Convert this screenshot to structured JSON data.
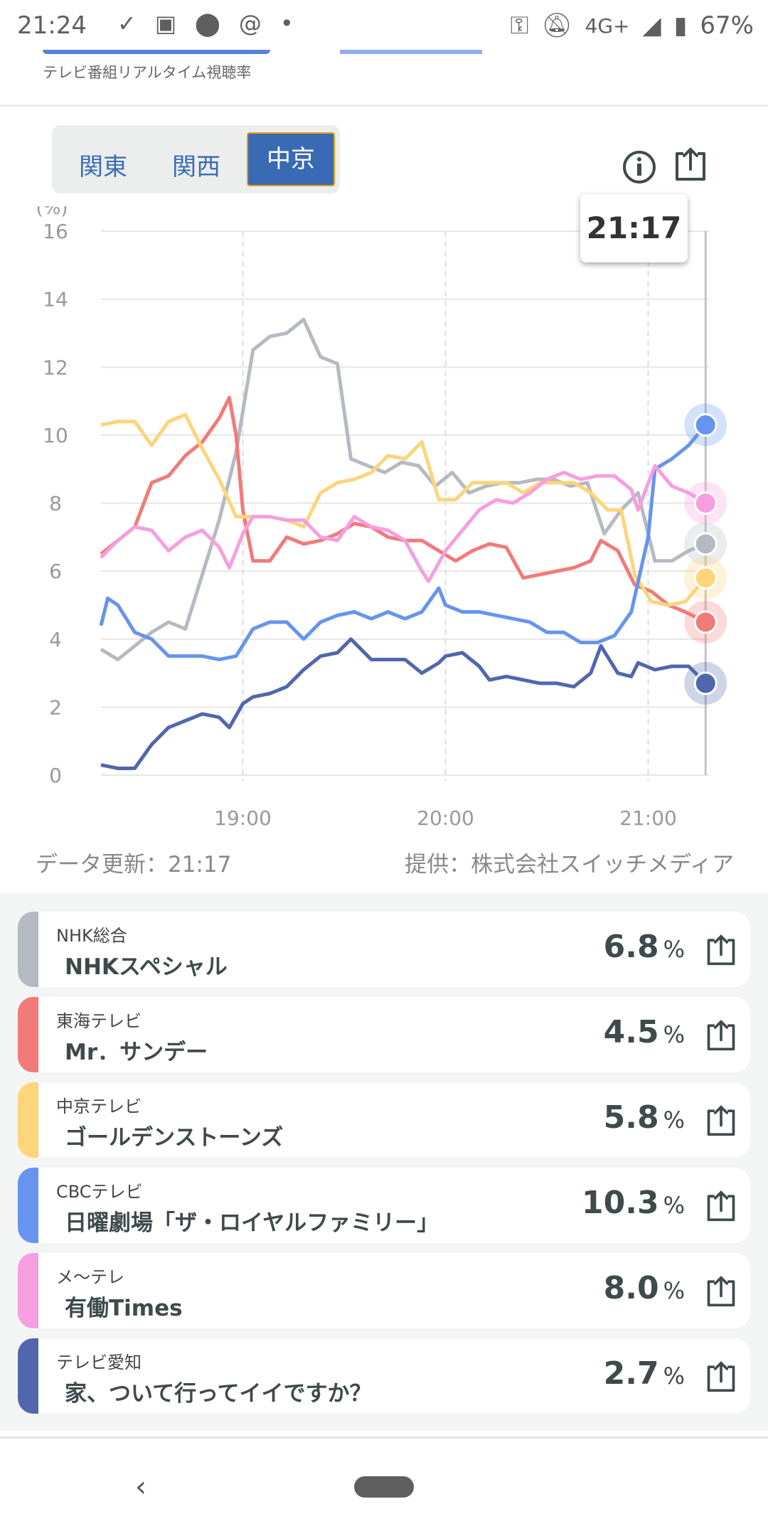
{
  "status": {
    "time": "21:24",
    "network": "4G+",
    "battery": "67%"
  },
  "header": {
    "subtitle": "テレビ番組リアルタイム視聴率"
  },
  "tabs": [
    {
      "label": "関東"
    },
    {
      "label": "関西"
    },
    {
      "label": "中京",
      "active": true
    }
  ],
  "tooltip": {
    "time": "21:17"
  },
  "footer": {
    "updated": "データ更新：21:17",
    "provider": "提供：株式会社スイッチメディア"
  },
  "chart_data": {
    "type": "line",
    "ylabel": "(%)",
    "ylim": [
      0,
      16
    ],
    "yticks": [
      0,
      2,
      4,
      6,
      8,
      10,
      12,
      14,
      16
    ],
    "x_unit": "minutes since 18:00",
    "xlim": [
      18,
      198
    ],
    "xticks": [
      {
        "x": 60,
        "label": "19:00"
      },
      {
        "x": 120,
        "label": "20:00"
      },
      {
        "x": 180,
        "label": "21:00"
      }
    ],
    "cursor_x": 197,
    "series": [
      {
        "name": "NHK総合",
        "color": "#b5bac2",
        "points": [
          [
            18,
            3.7
          ],
          [
            23,
            3.4
          ],
          [
            28,
            3.8
          ],
          [
            33,
            4.2
          ],
          [
            38,
            4.5
          ],
          [
            43,
            4.3
          ],
          [
            48,
            5.9
          ],
          [
            53,
            7.5
          ],
          [
            58,
            9.5
          ],
          [
            63,
            12.5
          ],
          [
            68,
            12.9
          ],
          [
            73,
            13.0
          ],
          [
            78,
            13.4
          ],
          [
            83,
            12.3
          ],
          [
            88,
            12.1
          ],
          [
            92,
            9.3
          ],
          [
            97,
            9.1
          ],
          [
            102,
            8.9
          ],
          [
            107,
            9.2
          ],
          [
            112,
            9.1
          ],
          [
            117,
            8.5
          ],
          [
            122,
            8.9
          ],
          [
            127,
            8.3
          ],
          [
            132,
            8.5
          ],
          [
            137,
            8.6
          ],
          [
            142,
            8.6
          ],
          [
            147,
            8.7
          ],
          [
            152,
            8.7
          ],
          [
            157,
            8.5
          ],
          [
            162,
            8.6
          ],
          [
            167,
            7.1
          ],
          [
            172,
            7.8
          ],
          [
            177,
            8.3
          ],
          [
            182,
            6.3
          ],
          [
            187,
            6.3
          ],
          [
            192,
            6.6
          ],
          [
            197,
            6.8
          ]
        ]
      },
      {
        "name": "東海テレビ",
        "color": "#f07b78",
        "points": [
          [
            18,
            6.5
          ],
          [
            23,
            6.9
          ],
          [
            28,
            7.3
          ],
          [
            33,
            8.6
          ],
          [
            38,
            8.8
          ],
          [
            43,
            9.4
          ],
          [
            48,
            9.8
          ],
          [
            53,
            10.5
          ],
          [
            56,
            11.1
          ],
          [
            58,
            10.0
          ],
          [
            60,
            7.8
          ],
          [
            63,
            6.3
          ],
          [
            68,
            6.3
          ],
          [
            73,
            7.0
          ],
          [
            78,
            6.8
          ],
          [
            83,
            6.9
          ],
          [
            88,
            7.1
          ],
          [
            93,
            7.4
          ],
          [
            98,
            7.3
          ],
          [
            103,
            7.0
          ],
          [
            108,
            6.9
          ],
          [
            113,
            6.9
          ],
          [
            118,
            6.6
          ],
          [
            123,
            6.3
          ],
          [
            128,
            6.6
          ],
          [
            133,
            6.8
          ],
          [
            138,
            6.7
          ],
          [
            143,
            5.8
          ],
          [
            148,
            5.9
          ],
          [
            153,
            6.0
          ],
          [
            158,
            6.1
          ],
          [
            163,
            6.3
          ],
          [
            166,
            6.9
          ],
          [
            171,
            6.6
          ],
          [
            176,
            5.6
          ],
          [
            181,
            5.4
          ],
          [
            186,
            5.0
          ],
          [
            191,
            4.8
          ],
          [
            197,
            4.5
          ]
        ]
      },
      {
        "name": "中京テレビ",
        "color": "#fdd57a",
        "points": [
          [
            18,
            10.3
          ],
          [
            23,
            10.4
          ],
          [
            28,
            10.4
          ],
          [
            33,
            9.7
          ],
          [
            38,
            10.4
          ],
          [
            43,
            10.6
          ],
          [
            48,
            9.6
          ],
          [
            53,
            8.7
          ],
          [
            58,
            7.6
          ],
          [
            63,
            7.6
          ],
          [
            68,
            7.6
          ],
          [
            73,
            7.5
          ],
          [
            78,
            7.3
          ],
          [
            83,
            8.3
          ],
          [
            88,
            8.6
          ],
          [
            93,
            8.7
          ],
          [
            98,
            8.9
          ],
          [
            103,
            9.4
          ],
          [
            108,
            9.3
          ],
          [
            113,
            9.8
          ],
          [
            118,
            8.1
          ],
          [
            123,
            8.1
          ],
          [
            128,
            8.6
          ],
          [
            133,
            8.6
          ],
          [
            138,
            8.6
          ],
          [
            143,
            8.3
          ],
          [
            148,
            8.6
          ],
          [
            153,
            8.6
          ],
          [
            158,
            8.6
          ],
          [
            163,
            8.3
          ],
          [
            168,
            7.8
          ],
          [
            172,
            7.8
          ],
          [
            176,
            5.9
          ],
          [
            181,
            5.1
          ],
          [
            186,
            5.0
          ],
          [
            191,
            5.1
          ],
          [
            197,
            5.8
          ]
        ]
      },
      {
        "name": "CBCテレビ",
        "color": "#6694ee",
        "points": [
          [
            18,
            4.4
          ],
          [
            20,
            5.2
          ],
          [
            23,
            5.0
          ],
          [
            28,
            4.2
          ],
          [
            33,
            4.0
          ],
          [
            38,
            3.5
          ],
          [
            43,
            3.5
          ],
          [
            48,
            3.5
          ],
          [
            53,
            3.4
          ],
          [
            58,
            3.5
          ],
          [
            63,
            4.3
          ],
          [
            68,
            4.5
          ],
          [
            73,
            4.5
          ],
          [
            78,
            4.0
          ],
          [
            83,
            4.5
          ],
          [
            88,
            4.7
          ],
          [
            93,
            4.8
          ],
          [
            98,
            4.6
          ],
          [
            103,
            4.8
          ],
          [
            108,
            4.6
          ],
          [
            113,
            4.8
          ],
          [
            118,
            5.5
          ],
          [
            120,
            5.0
          ],
          [
            125,
            4.8
          ],
          [
            130,
            4.8
          ],
          [
            135,
            4.7
          ],
          [
            140,
            4.6
          ],
          [
            145,
            4.5
          ],
          [
            150,
            4.2
          ],
          [
            155,
            4.2
          ],
          [
            160,
            3.9
          ],
          [
            165,
            3.9
          ],
          [
            170,
            4.1
          ],
          [
            175,
            4.8
          ],
          [
            180,
            7.0
          ],
          [
            182,
            9.0
          ],
          [
            187,
            9.3
          ],
          [
            192,
            9.7
          ],
          [
            197,
            10.3
          ]
        ]
      },
      {
        "name": "メ〜テレ",
        "color": "#f59fe0",
        "points": [
          [
            18,
            6.4
          ],
          [
            23,
            6.9
          ],
          [
            28,
            7.3
          ],
          [
            33,
            7.2
          ],
          [
            38,
            6.6
          ],
          [
            43,
            7.0
          ],
          [
            48,
            7.2
          ],
          [
            53,
            6.7
          ],
          [
            56,
            6.1
          ],
          [
            60,
            7.1
          ],
          [
            63,
            7.6
          ],
          [
            68,
            7.6
          ],
          [
            73,
            7.5
          ],
          [
            78,
            7.5
          ],
          [
            83,
            7.0
          ],
          [
            88,
            6.9
          ],
          [
            93,
            7.6
          ],
          [
            98,
            7.3
          ],
          [
            103,
            7.2
          ],
          [
            108,
            6.9
          ],
          [
            113,
            6.0
          ],
          [
            115,
            5.7
          ],
          [
            120,
            6.6
          ],
          [
            125,
            7.2
          ],
          [
            130,
            7.8
          ],
          [
            135,
            8.1
          ],
          [
            140,
            8.0
          ],
          [
            145,
            8.3
          ],
          [
            150,
            8.7
          ],
          [
            155,
            8.9
          ],
          [
            160,
            8.7
          ],
          [
            165,
            8.8
          ],
          [
            170,
            8.8
          ],
          [
            175,
            8.4
          ],
          [
            177,
            7.8
          ],
          [
            182,
            9.1
          ],
          [
            187,
            8.5
          ],
          [
            192,
            8.3
          ],
          [
            197,
            8.0
          ]
        ]
      },
      {
        "name": "テレビ愛知",
        "color": "#5067ad",
        "points": [
          [
            18,
            0.3
          ],
          [
            23,
            0.2
          ],
          [
            28,
            0.2
          ],
          [
            33,
            0.9
          ],
          [
            38,
            1.4
          ],
          [
            43,
            1.6
          ],
          [
            48,
            1.8
          ],
          [
            53,
            1.7
          ],
          [
            56,
            1.4
          ],
          [
            60,
            2.1
          ],
          [
            63,
            2.3
          ],
          [
            68,
            2.4
          ],
          [
            73,
            2.6
          ],
          [
            78,
            3.1
          ],
          [
            83,
            3.5
          ],
          [
            88,
            3.6
          ],
          [
            92,
            4.0
          ],
          [
            95,
            3.7
          ],
          [
            98,
            3.4
          ],
          [
            103,
            3.4
          ],
          [
            108,
            3.4
          ],
          [
            113,
            3.0
          ],
          [
            118,
            3.3
          ],
          [
            120,
            3.5
          ],
          [
            125,
            3.6
          ],
          [
            130,
            3.2
          ],
          [
            133,
            2.8
          ],
          [
            138,
            2.9
          ],
          [
            143,
            2.8
          ],
          [
            148,
            2.7
          ],
          [
            153,
            2.7
          ],
          [
            158,
            2.6
          ],
          [
            163,
            3.0
          ],
          [
            166,
            3.8
          ],
          [
            171,
            3.0
          ],
          [
            175,
            2.9
          ],
          [
            177,
            3.3
          ],
          [
            182,
            3.1
          ],
          [
            187,
            3.2
          ],
          [
            192,
            3.2
          ],
          [
            197,
            2.7
          ]
        ]
      }
    ]
  },
  "programs": [
    {
      "channel": "NHK総合",
      "title": "NHKスペシャル",
      "rating": "6.8",
      "unit": "%",
      "color": "#b5bac2"
    },
    {
      "channel": "東海テレビ",
      "title": "Mr．サンデー",
      "rating": "4.5",
      "unit": "%",
      "color": "#f07b78"
    },
    {
      "channel": "中京テレビ",
      "title": "ゴールデンストーンズ",
      "rating": "5.8",
      "unit": "%",
      "color": "#fdd57a"
    },
    {
      "channel": "CBCテレビ",
      "title": "日曜劇場「ザ・ロイヤルファミリー」",
      "rating": "10.3",
      "unit": "%",
      "color": "#6694ee"
    },
    {
      "channel": "メ〜テレ",
      "title": "有働Times",
      "rating": "8.0",
      "unit": "%",
      "color": "#f59fe0"
    },
    {
      "channel": "テレビ愛知",
      "title": "家、ついて行ってイイですか？",
      "rating": "2.7",
      "unit": "%",
      "color": "#5067ad"
    }
  ]
}
